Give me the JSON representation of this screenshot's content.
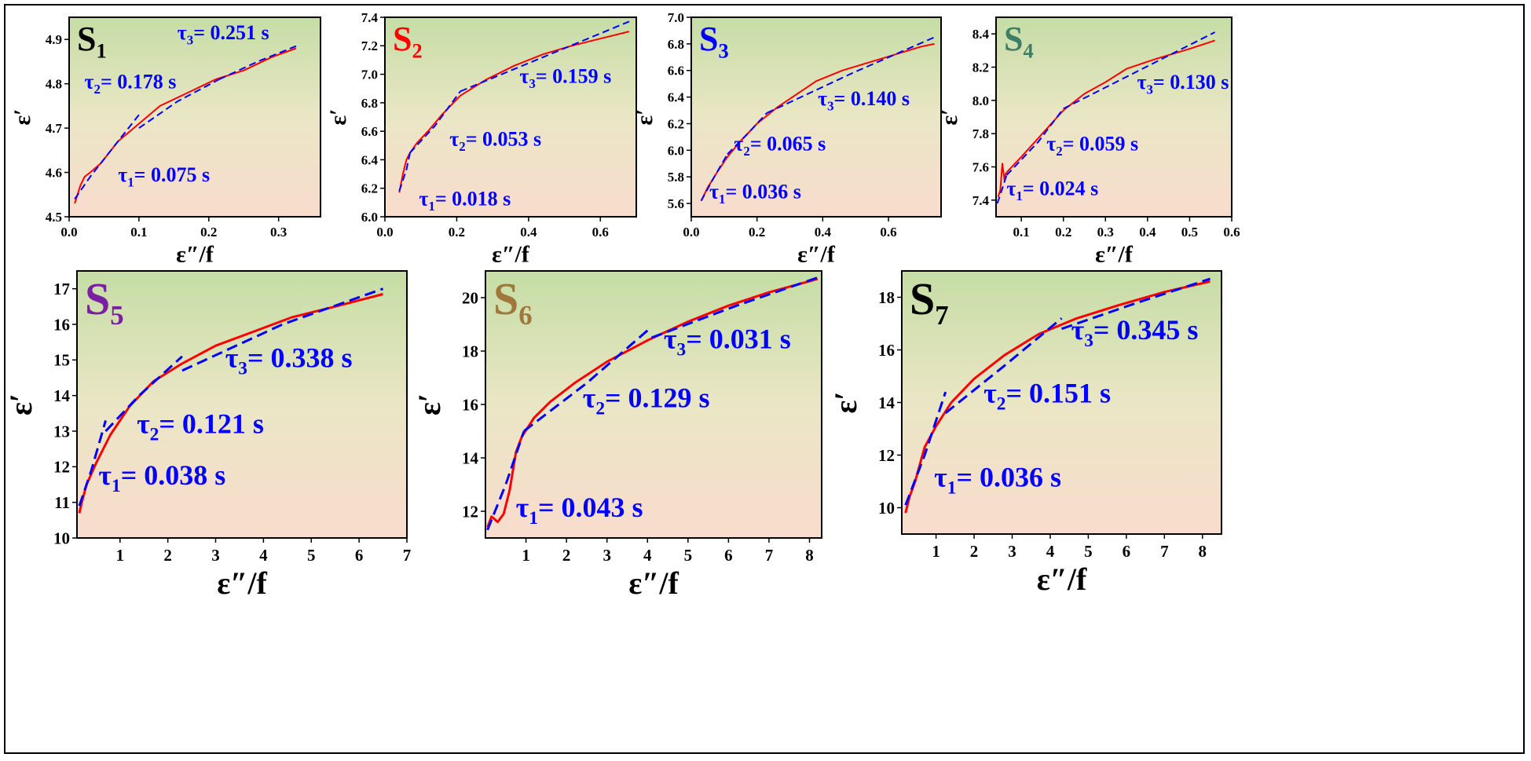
{
  "chart_data": [
    {
      "type": "line",
      "sample": {
        "letter": "S",
        "sub": "1",
        "color": "#000000"
      },
      "xlabel": "ε″/f",
      "ylabel": "ε′",
      "xlim": [
        0,
        0.36
      ],
      "ylim": [
        4.5,
        4.95
      ],
      "xticks": [
        0.0,
        0.1,
        0.2,
        0.3
      ],
      "xtick_labels": [
        "0.0",
        "0.1",
        "0.2",
        "0.3"
      ],
      "yticks": [
        4.5,
        4.6,
        4.7,
        4.8,
        4.9
      ],
      "ytick_labels": [
        "4.5",
        "4.6",
        "4.7",
        "4.8",
        "4.9"
      ],
      "series": [
        {
          "color": "#ff0000",
          "style": "solid",
          "x": [
            0.008,
            0.012,
            0.016,
            0.022,
            0.03,
            0.045,
            0.07,
            0.1,
            0.13,
            0.17,
            0.21,
            0.25,
            0.29,
            0.325
          ],
          "y": [
            4.53,
            4.55,
            4.57,
            4.59,
            4.6,
            4.62,
            4.67,
            4.71,
            4.75,
            4.78,
            4.81,
            4.83,
            4.86,
            4.88
          ]
        },
        {
          "color": "#0000ff",
          "style": "dashed",
          "segments": [
            {
              "x": [
                0.008,
                0.03,
                0.045
              ],
              "y": [
                4.54,
                4.59,
                4.62
              ]
            },
            {
              "x": [
                0.045,
                0.07,
                0.1
              ],
              "y": [
                4.62,
                4.67,
                4.73
              ]
            },
            {
              "x": [
                0.1,
                0.155,
                0.215
              ],
              "y": [
                4.7,
                4.76,
                4.81
              ]
            },
            {
              "x": [
                0.215,
                0.27,
                0.325
              ],
              "y": [
                4.81,
                4.85,
                4.885
              ]
            }
          ]
        }
      ],
      "annotations": [
        {
          "tau": "τ",
          "sub": "1",
          "text": "= 0.075 s",
          "x": 0.07,
          "y": 4.58
        },
        {
          "tau": "τ",
          "sub": "2",
          "text": "= 0.178 s",
          "x": 0.022,
          "y": 4.79
        },
        {
          "tau": "τ",
          "sub": "3",
          "text": "= 0.251 s",
          "x": 0.155,
          "y": 4.9
        }
      ]
    },
    {
      "type": "line",
      "sample": {
        "letter": "S",
        "sub": "2",
        "color": "#ff0000"
      },
      "xlabel": "ε″/f",
      "ylabel": "ε′",
      "xlim": [
        0,
        0.7
      ],
      "ylim": [
        6.0,
        7.4
      ],
      "xticks": [
        0.0,
        0.2,
        0.4,
        0.6
      ],
      "xtick_labels": [
        "0.0",
        "0.2",
        "0.4",
        "0.6"
      ],
      "yticks": [
        6.0,
        6.2,
        6.4,
        6.6,
        6.8,
        7.0,
        7.2,
        7.4
      ],
      "ytick_labels": [
        "6.0",
        "6.2",
        "6.4",
        "6.6",
        "6.8",
        "7.0",
        "7.2",
        "7.4"
      ],
      "series": [
        {
          "color": "#ff0000",
          "style": "solid",
          "x": [
            0.04,
            0.05,
            0.06,
            0.07,
            0.09,
            0.12,
            0.16,
            0.21,
            0.28,
            0.36,
            0.44,
            0.52,
            0.6,
            0.68
          ],
          "y": [
            6.17,
            6.3,
            6.4,
            6.45,
            6.52,
            6.6,
            6.72,
            6.85,
            6.96,
            7.06,
            7.14,
            7.2,
            7.25,
            7.3
          ]
        },
        {
          "color": "#0000ff",
          "style": "dashed",
          "segments": [
            {
              "x": [
                0.04,
                0.06,
                0.07
              ],
              "y": [
                6.18,
                6.33,
                6.45
              ]
            },
            {
              "x": [
                0.07,
                0.14,
                0.21
              ],
              "y": [
                6.45,
                6.64,
                6.88
              ]
            },
            {
              "x": [
                0.21,
                0.45,
                0.68
              ],
              "y": [
                6.88,
                7.13,
                7.37
              ]
            }
          ]
        }
      ],
      "annotations": [
        {
          "tau": "τ",
          "sub": "1",
          "text": "= 0.018 s",
          "x": 0.095,
          "y": 6.08
        },
        {
          "tau": "τ",
          "sub": "2",
          "text": "= 0.053 s",
          "x": 0.18,
          "y": 6.5
        },
        {
          "tau": "τ",
          "sub": "3",
          "text": "= 0.159 s",
          "x": 0.375,
          "y": 6.94
        }
      ]
    },
    {
      "type": "line",
      "sample": {
        "letter": "S",
        "sub": "3",
        "color": "#0000ff"
      },
      "xlabel": "ε″/f",
      "ylabel": "ε′",
      "xlim": [
        0,
        0.76
      ],
      "ylim": [
        5.5,
        7.0
      ],
      "xticks": [
        0.0,
        0.2,
        0.4,
        0.6
      ],
      "xtick_labels": [
        "0.0",
        "0.2",
        "0.4",
        "0.6"
      ],
      "yticks": [
        5.6,
        5.8,
        6.0,
        6.2,
        6.4,
        6.6,
        6.8,
        7.0
      ],
      "ytick_labels": [
        "5.6",
        "5.8",
        "6.0",
        "6.2",
        "6.4",
        "6.6",
        "6.8",
        "7.0"
      ],
      "series": [
        {
          "color": "#ff0000",
          "style": "solid",
          "x": [
            0.03,
            0.05,
            0.08,
            0.11,
            0.15,
            0.2,
            0.26,
            0.32,
            0.38,
            0.46,
            0.54,
            0.62,
            0.7,
            0.74
          ],
          "y": [
            5.62,
            5.72,
            5.84,
            5.95,
            6.07,
            6.2,
            6.32,
            6.42,
            6.52,
            6.6,
            6.66,
            6.72,
            6.78,
            6.8
          ]
        },
        {
          "color": "#0000ff",
          "style": "dashed",
          "segments": [
            {
              "x": [
                0.03,
                0.07,
                0.11
              ],
              "y": [
                5.62,
                5.8,
                5.97
              ]
            },
            {
              "x": [
                0.11,
                0.17,
                0.23
              ],
              "y": [
                5.97,
                6.12,
                6.28
              ]
            },
            {
              "x": [
                0.23,
                0.49,
                0.74
              ],
              "y": [
                6.28,
                6.58,
                6.85
              ]
            }
          ]
        }
      ],
      "annotations": [
        {
          "tau": "τ",
          "sub": "1",
          "text": "= 0.036 s",
          "x": 0.055,
          "y": 5.64
        },
        {
          "tau": "τ",
          "sub": "2",
          "text": "= 0.065 s",
          "x": 0.13,
          "y": 6.0
        },
        {
          "tau": "τ",
          "sub": "3",
          "text": "= 0.140 s",
          "x": 0.385,
          "y": 6.34
        }
      ]
    },
    {
      "type": "line",
      "sample": {
        "letter": "S",
        "sub": "4",
        "color": "#3e7d66"
      },
      "xlabel": "ε″/f",
      "ylabel": "ε′",
      "xlim": [
        0.04,
        0.6
      ],
      "ylim": [
        7.3,
        8.5
      ],
      "xticks": [
        0.1,
        0.2,
        0.3,
        0.4,
        0.5,
        0.6
      ],
      "xtick_labels": [
        "0.1",
        "0.2",
        "0.3",
        "0.4",
        "0.5",
        "0.6"
      ],
      "yticks": [
        7.4,
        7.6,
        7.8,
        8.0,
        8.2,
        8.4
      ],
      "ytick_labels": [
        "7.4",
        "7.6",
        "7.8",
        "8.0",
        "8.2",
        "8.4"
      ],
      "series": [
        {
          "color": "#ff0000",
          "style": "solid",
          "x": [
            0.045,
            0.05,
            0.055,
            0.06,
            0.063,
            0.07,
            0.1,
            0.15,
            0.2,
            0.25,
            0.3,
            0.35,
            0.42,
            0.5,
            0.56
          ],
          "y": [
            7.42,
            7.46,
            7.62,
            7.52,
            7.56,
            7.58,
            7.66,
            7.8,
            7.94,
            8.04,
            8.11,
            8.19,
            8.25,
            8.31,
            8.36
          ]
        },
        {
          "color": "#0000ff",
          "style": "dashed",
          "segments": [
            {
              "x": [
                0.043,
                0.055,
                0.065
              ],
              "y": [
                7.38,
                7.47,
                7.55
              ]
            },
            {
              "x": [
                0.065,
                0.14,
                0.2
              ],
              "y": [
                7.55,
                7.75,
                7.95
              ]
            },
            {
              "x": [
                0.2,
                0.38,
                0.56
              ],
              "y": [
                7.95,
                8.18,
                8.41
              ]
            }
          ]
        }
      ],
      "annotations": [
        {
          "tau": "τ",
          "sub": "1",
          "text": "= 0.024 s",
          "x": 0.065,
          "y": 7.43
        },
        {
          "tau": "τ",
          "sub": "2",
          "text": "= 0.059 s",
          "x": 0.16,
          "y": 7.7
        },
        {
          "tau": "τ",
          "sub": "3",
          "text": "= 0.130 s",
          "x": 0.375,
          "y": 8.07
        }
      ]
    },
    {
      "type": "line",
      "sample": {
        "letter": "S",
        "sub": "5",
        "color": "#7a1fa2"
      },
      "xlabel": "ε″/f",
      "ylabel": "ε′",
      "xlim": [
        0.1,
        7
      ],
      "ylim": [
        10,
        17.5
      ],
      "xticks": [
        1,
        2,
        3,
        4,
        5,
        6,
        7
      ],
      "xtick_labels": [
        "1",
        "2",
        "3",
        "4",
        "5",
        "6",
        "7"
      ],
      "yticks": [
        10,
        11,
        12,
        13,
        14,
        15,
        16,
        17
      ],
      "ytick_labels": [
        "10",
        "11",
        "12",
        "13",
        "14",
        "15",
        "16",
        "17"
      ],
      "series": [
        {
          "color": "#ff0000",
          "style": "solid",
          "x": [
            0.15,
            0.2,
            0.3,
            0.5,
            0.8,
            1.2,
            1.7,
            2.3,
            3.0,
            3.8,
            4.6,
            5.5,
            6.5
          ],
          "y": [
            10.7,
            11.0,
            11.5,
            12.1,
            12.9,
            13.7,
            14.4,
            14.9,
            15.4,
            15.8,
            16.2,
            16.5,
            16.85
          ]
        },
        {
          "color": "#0000ff",
          "style": "dashed",
          "segments": [
            {
              "x": [
                0.15,
                0.4,
                0.7
              ],
              "y": [
                10.9,
                11.9,
                13.3
              ]
            },
            {
              "x": [
                0.7,
                1.4,
                2.3
              ],
              "y": [
                13.0,
                14.0,
                15.1
              ]
            },
            {
              "x": [
                2.3,
                4.4,
                6.5
              ],
              "y": [
                14.7,
                16.0,
                17.0
              ]
            }
          ]
        }
      ],
      "annotations": [
        {
          "tau": "τ",
          "sub": "1",
          "text": "= 0.038 s",
          "x": 0.55,
          "y": 11.5
        },
        {
          "tau": "τ",
          "sub": "2",
          "text": "= 0.121 s",
          "x": 1.35,
          "y": 12.95
        },
        {
          "tau": "τ",
          "sub": "3",
          "text": "= 0.338 s",
          "x": 3.2,
          "y": 14.8
        }
      ]
    },
    {
      "type": "line",
      "sample": {
        "letter": "S",
        "sub": "6",
        "color": "#a0783c"
      },
      "xlabel": "ε″/f",
      "ylabel": "ε′",
      "xlim": [
        0,
        8.3
      ],
      "ylim": [
        11,
        21
      ],
      "xticks": [
        1,
        2,
        3,
        4,
        5,
        6,
        7,
        8
      ],
      "xtick_labels": [
        "1",
        "2",
        "3",
        "4",
        "5",
        "6",
        "7",
        "8"
      ],
      "yticks": [
        12,
        14,
        16,
        18,
        20
      ],
      "ytick_labels": [
        "12",
        "14",
        "16",
        "18",
        "20"
      ],
      "series": [
        {
          "color": "#ff0000",
          "style": "solid",
          "x": [
            0.05,
            0.15,
            0.3,
            0.45,
            0.6,
            0.75,
            0.9,
            1.2,
            1.6,
            2.2,
            3.0,
            4.0,
            5.0,
            6.0,
            7.0,
            8.2
          ],
          "y": [
            11.4,
            11.8,
            11.6,
            11.9,
            12.8,
            14.2,
            14.8,
            15.5,
            16.1,
            16.8,
            17.6,
            18.4,
            19.1,
            19.7,
            20.2,
            20.7
          ]
        },
        {
          "color": "#0000ff",
          "style": "dashed",
          "segments": [
            {
              "x": [
                0.05,
                0.5,
                0.95
              ],
              "y": [
                11.3,
                13.0,
                15.0
              ]
            },
            {
              "x": [
                0.95,
                2.5,
                4.1
              ],
              "y": [
                15.0,
                16.8,
                18.9
              ]
            },
            {
              "x": [
                4.1,
                6.2,
                8.2
              ],
              "y": [
                18.5,
                19.7,
                20.75
              ]
            }
          ]
        }
      ],
      "annotations": [
        {
          "tau": "τ",
          "sub": "1",
          "text": "= 0.043 s",
          "x": 0.75,
          "y": 11.8
        },
        {
          "tau": "τ",
          "sub": "2",
          "text": "= 0.129 s",
          "x": 2.4,
          "y": 15.9
        },
        {
          "tau": "τ",
          "sub": "3",
          "text": "= 0.031 s",
          "x": 4.4,
          "y": 18.1
        }
      ]
    },
    {
      "type": "line",
      "sample": {
        "letter": "S",
        "sub": "7",
        "color": "#000000"
      },
      "xlabel": "ε″/f",
      "ylabel": "ε′",
      "xlim": [
        0.1,
        8.5
      ],
      "ylim": [
        9,
        19
      ],
      "xticks": [
        1,
        2,
        3,
        4,
        5,
        6,
        7,
        8
      ],
      "xtick_labels": [
        "1",
        "2",
        "3",
        "4",
        "5",
        "6",
        "7",
        "8"
      ],
      "yticks": [
        10,
        12,
        14,
        16,
        18
      ],
      "ytick_labels": [
        "10",
        "12",
        "14",
        "16",
        "18"
      ],
      "series": [
        {
          "color": "#ff0000",
          "style": "solid",
          "x": [
            0.2,
            0.3,
            0.45,
            0.7,
            1.0,
            1.4,
            2.0,
            2.8,
            3.7,
            4.7,
            5.8,
            7.0,
            8.2
          ],
          "y": [
            9.8,
            10.4,
            11.0,
            12.3,
            13.1,
            14.0,
            14.9,
            15.8,
            16.6,
            17.2,
            17.7,
            18.2,
            18.6
          ]
        },
        {
          "color": "#0000ff",
          "style": "dashed",
          "segments": [
            {
              "x": [
                0.2,
                0.7,
                1.25
              ],
              "y": [
                10.1,
                12.0,
                14.4
              ]
            },
            {
              "x": [
                1.25,
                2.8,
                4.3
              ],
              "y": [
                13.6,
                15.4,
                17.2
              ]
            },
            {
              "x": [
                4.3,
                6.3,
                8.2
              ],
              "y": [
                16.8,
                17.8,
                18.7
              ]
            }
          ]
        }
      ],
      "annotations": [
        {
          "tau": "τ",
          "sub": "1",
          "text": "= 0.036 s",
          "x": 0.95,
          "y": 10.8
        },
        {
          "tau": "τ",
          "sub": "2",
          "text": "= 0.151 s",
          "x": 2.25,
          "y": 14.0
        },
        {
          "tau": "τ",
          "sub": "3",
          "text": "= 0.345 s",
          "x": 4.55,
          "y": 16.4
        }
      ]
    }
  ]
}
